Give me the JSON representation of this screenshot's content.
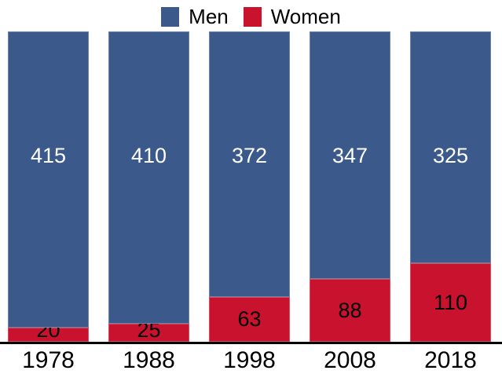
{
  "chart_data": {
    "type": "bar",
    "stacked": true,
    "orientation": "vertical",
    "categories": [
      "1978",
      "1988",
      "1998",
      "2008",
      "2018"
    ],
    "series": [
      {
        "name": "Men",
        "color": "#3B5A8B",
        "label_color": "#FFFFFF",
        "values": [
          415,
          410,
          372,
          347,
          325
        ]
      },
      {
        "name": "Women",
        "color": "#C9122E",
        "label_color": "#000000",
        "values": [
          20,
          25,
          63,
          88,
          110
        ]
      }
    ],
    "total_per_bar": 435,
    "legend_position": "top",
    "axis_line_color": "#000000",
    "grid": false,
    "value_labels_shown": true
  }
}
